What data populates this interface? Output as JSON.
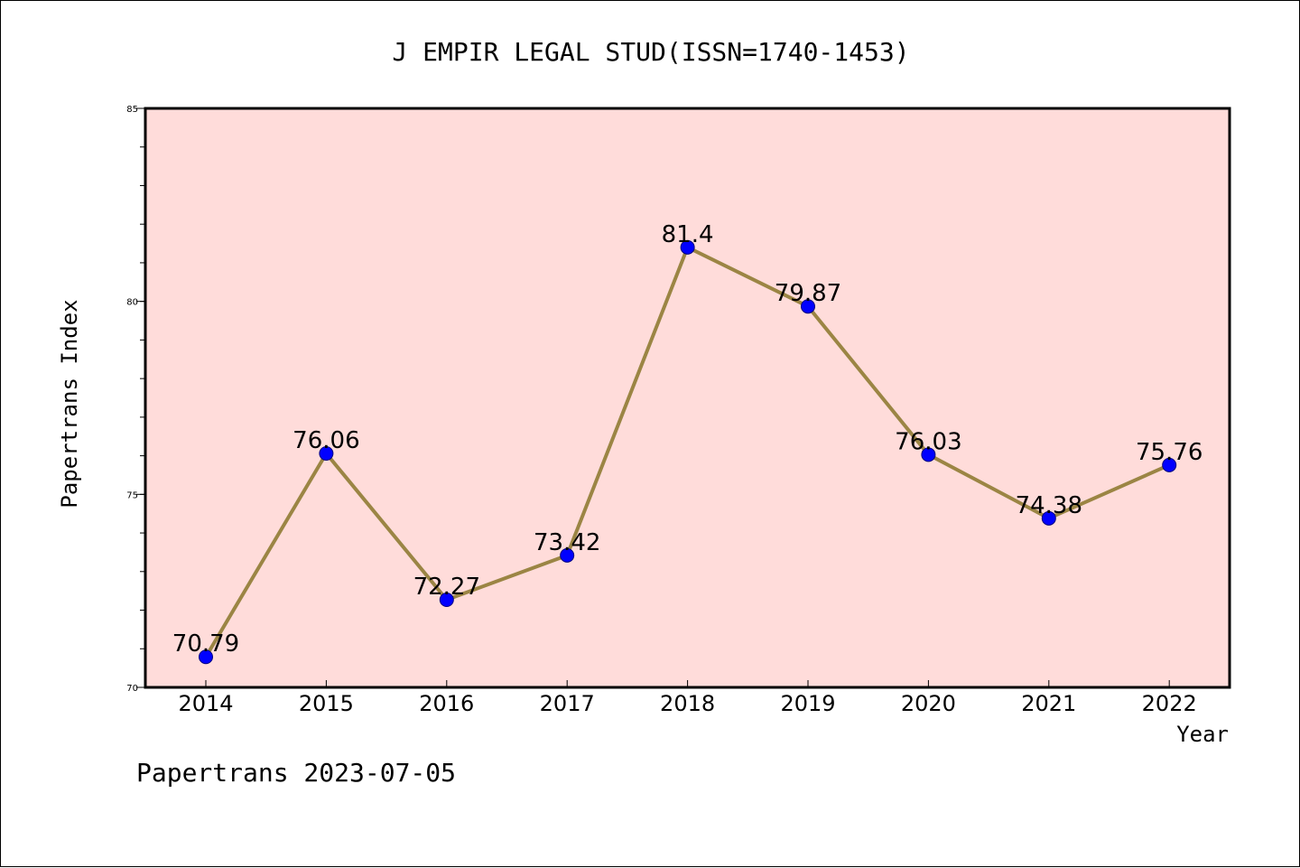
{
  "chart_data": {
    "type": "line",
    "title": "J EMPIR LEGAL STUD(ISSN=1740-1453)",
    "xlabel": "Year",
    "ylabel": "Papertrans Index",
    "categories": [
      "2014",
      "2015",
      "2016",
      "2017",
      "2018",
      "2019",
      "2020",
      "2021",
      "2022"
    ],
    "values": [
      70.79,
      76.06,
      72.27,
      73.42,
      81.4,
      79.87,
      76.03,
      74.38,
      75.76
    ],
    "data_labels": [
      "70.79",
      "76.06",
      "72.27",
      "73.42",
      "81.4",
      "79.87",
      "76.03",
      "74.38",
      "75.76"
    ],
    "ylim": [
      70,
      85
    ],
    "y_ticks": [
      70,
      75,
      80,
      85
    ],
    "y_tick_labels": [
      "70",
      "75",
      "80",
      "85"
    ],
    "y_minor_step": 1,
    "grid": false,
    "legend": "none",
    "colors": {
      "plot_background": "#FFDCDA",
      "line": "#9B8544",
      "marker_fill": "#0000FF",
      "marker_stroke": "#000080"
    }
  },
  "footer": {
    "text": "Papertrans 2023-07-05"
  }
}
